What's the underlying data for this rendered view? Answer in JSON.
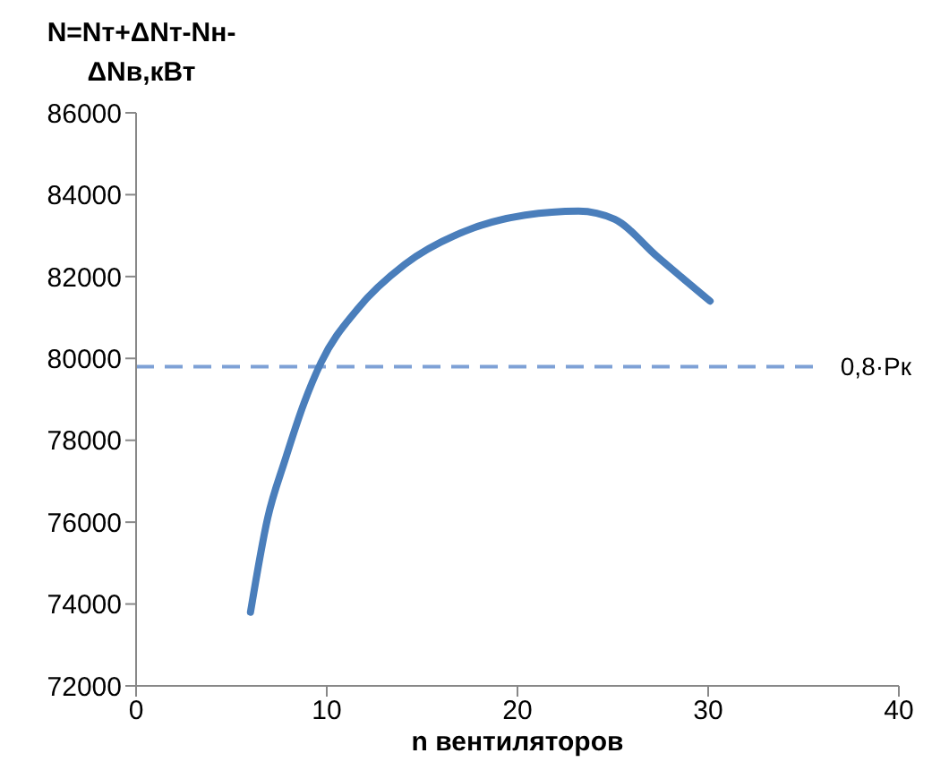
{
  "chart_data": {
    "type": "line",
    "ylabel": "N=Nт+ΔNт-Nн-ΔNв,кВт",
    "xlabel": "n вентиляторов",
    "series": [
      {
        "color": "#4a7ebb",
        "x": [
          6,
          6.9,
          7.8,
          8.8,
          9.7,
          11.6,
          14.1,
          17.2,
          20.4,
          23.2,
          25.1,
          27.3,
          30.1
        ],
        "values": [
          73800,
          76100,
          77500,
          78900,
          79900,
          81200,
          82300,
          83100,
          83500,
          83600,
          83400,
          82500,
          81400
        ]
      }
    ],
    "xlim": [
      0,
      40
    ],
    "xticks": [
      0,
      10,
      20,
      30,
      40
    ],
    "ylim": [
      72000,
      86000
    ],
    "yticks": [
      72000,
      74000,
      76000,
      78000,
      80000,
      82000,
      84000,
      86000
    ],
    "ref_lines": [
      {
        "axis": "y",
        "value": 79800,
        "label": "0,8·Pк",
        "color": "#7ea1d6",
        "line_style": "dashed"
      }
    ],
    "grid": false,
    "legend": false,
    "marker": "none",
    "line_style": "solid"
  }
}
